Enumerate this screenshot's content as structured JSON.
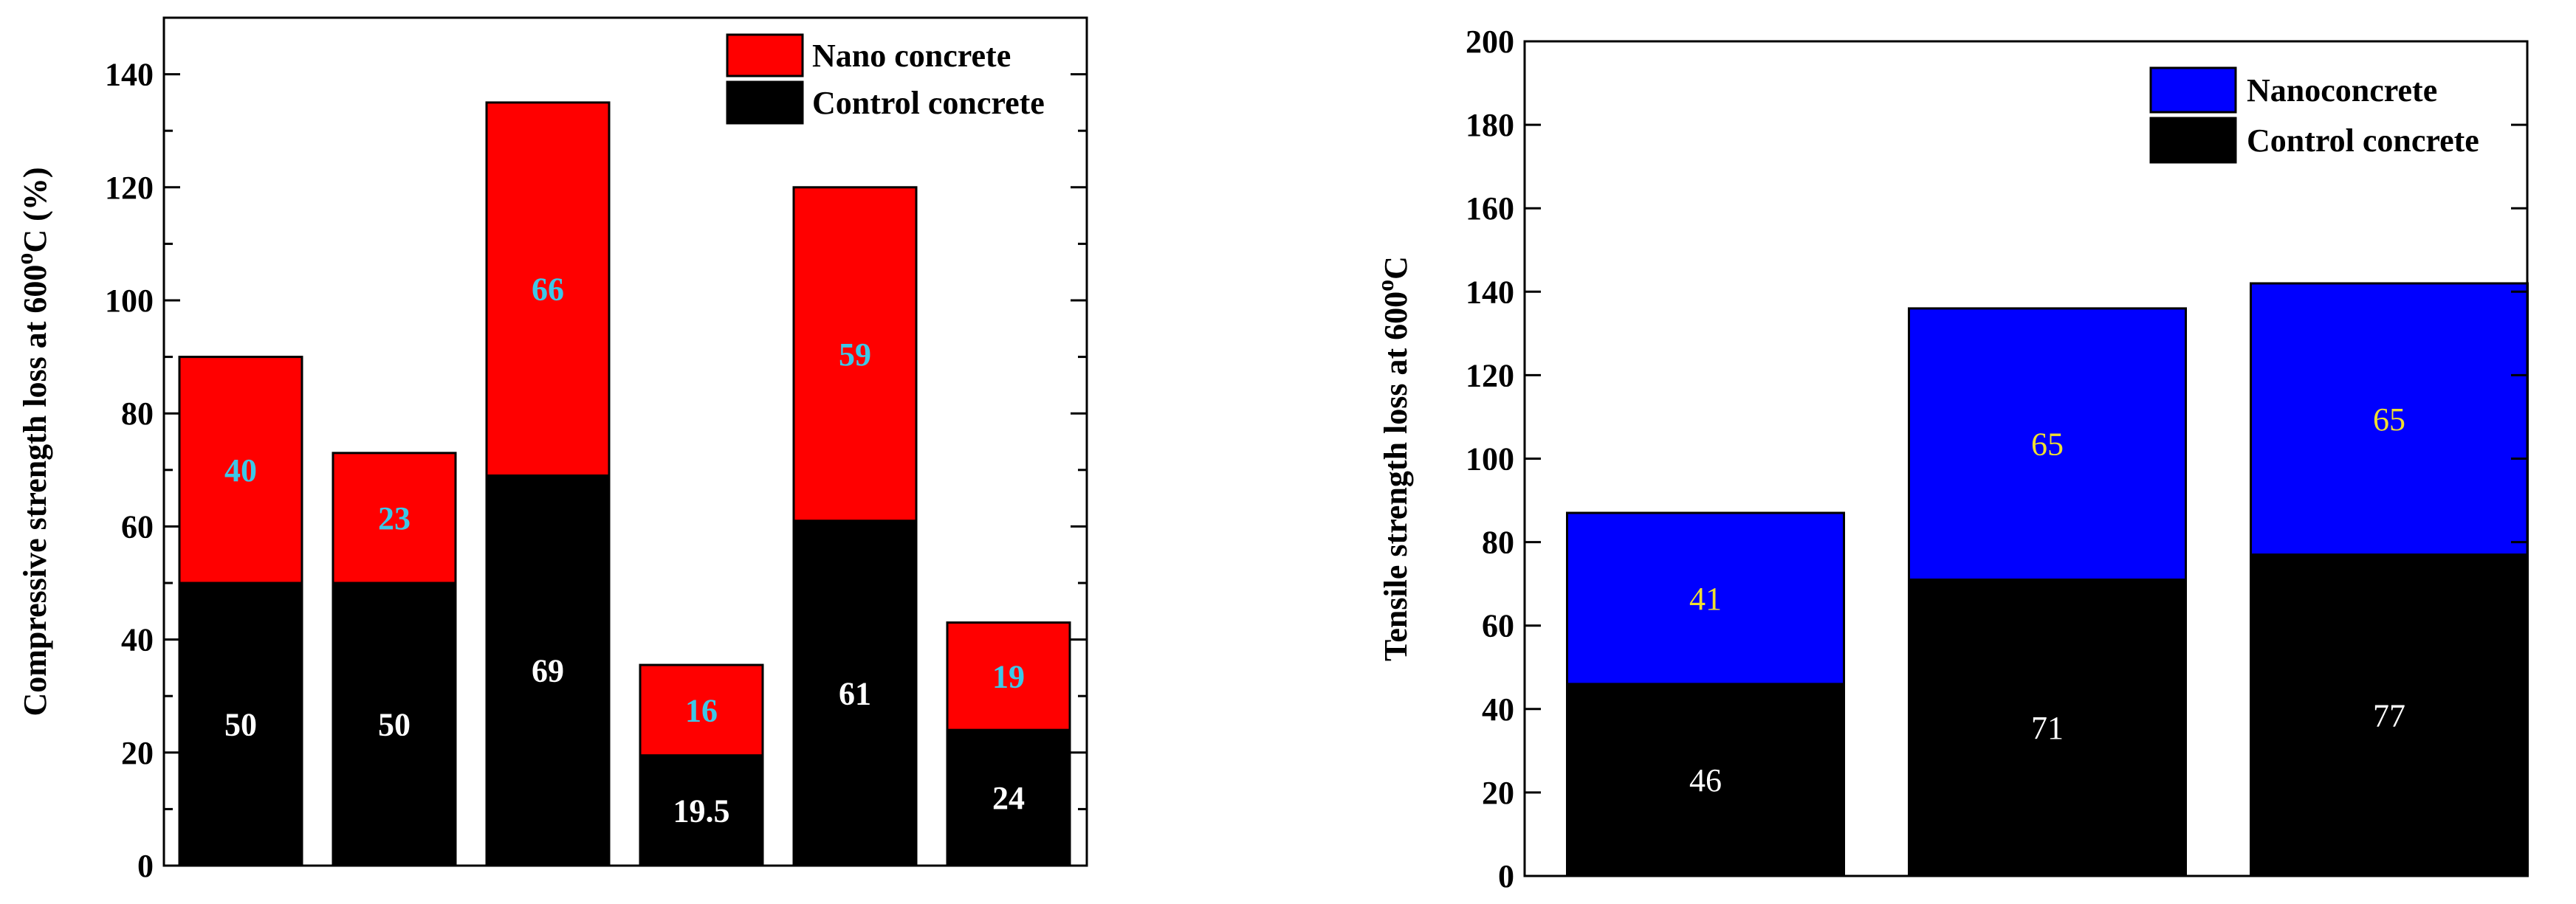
{
  "chart_data": [
    {
      "type": "bar",
      "stacked": true,
      "title": "",
      "xlabel": "",
      "ylabel_main": "Compressive strength loss at 600",
      "ylabel_sup": "o",
      "ylabel_tail": "C (%)",
      "ylim": [
        0,
        150
      ],
      "yticks": [
        0,
        20,
        40,
        60,
        80,
        100,
        120,
        140
      ],
      "ytick_labels": [
        "0",
        "20",
        "40",
        "60",
        "80",
        "100",
        "120",
        "140"
      ],
      "legend_position": "top-right",
      "series": [
        {
          "name": "Control concrete",
          "color": "#000000",
          "values": [
            50,
            50,
            69,
            19.5,
            61,
            24
          ],
          "labels": [
            "50",
            "50",
            "69",
            "19.5",
            "61",
            "24"
          ],
          "label_color": "#ffffff"
        },
        {
          "name": "Nano concrete",
          "color": "#ff0000",
          "values": [
            40,
            23,
            66,
            16,
            59,
            19
          ],
          "labels": [
            "40",
            "23",
            "66",
            "16",
            "59",
            "19"
          ],
          "label_color": "#3cc8e8"
        }
      ]
    },
    {
      "type": "bar",
      "stacked": true,
      "title": "",
      "xlabel": "",
      "ylabel_main": "Tensile strength loss at 600",
      "ylabel_sup": "o",
      "ylabel_tail": "C",
      "ylim": [
        0,
        200
      ],
      "yticks": [
        0,
        20,
        40,
        60,
        80,
        100,
        120,
        140,
        160,
        180,
        200
      ],
      "ytick_labels": [
        "0",
        "20",
        "40",
        "60",
        "80",
        "100",
        "120",
        "140",
        "160",
        "180",
        "200"
      ],
      "legend_position": "top-right",
      "series": [
        {
          "name": "Control concrete",
          "color": "#000000",
          "values": [
            46,
            71,
            77
          ],
          "labels": [
            "46",
            "71",
            "77"
          ],
          "label_color": "#ffffff"
        },
        {
          "name": "Nanoconcrete",
          "color": "#0000ff",
          "values": [
            41,
            65,
            65
          ],
          "labels": [
            "41",
            "65",
            "65"
          ],
          "label_color": "#f0e030"
        }
      ]
    }
  ]
}
